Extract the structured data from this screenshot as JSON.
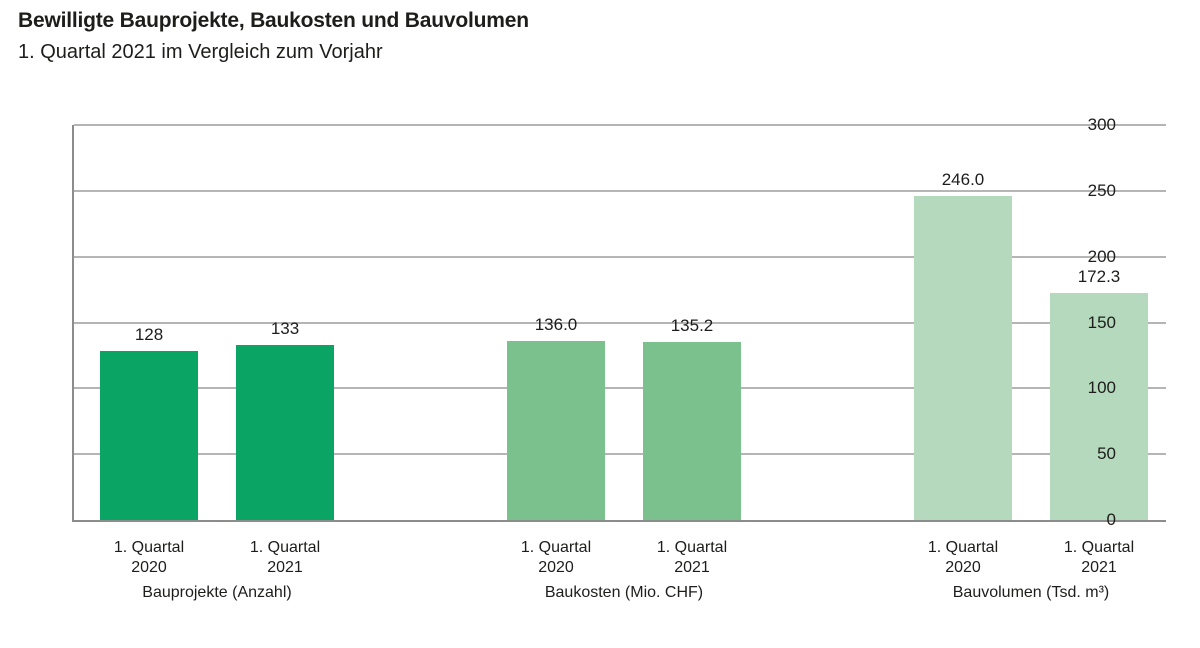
{
  "header": {
    "title": "Bewilligte Bauprojekte, Baukosten und Bauvolumen",
    "subtitle": "1. Quartal 2021 im Vergleich zum Vorjahr"
  },
  "chart_data": {
    "type": "bar",
    "title": "Bewilligte Bauprojekte, Baukosten und Bauvolumen",
    "subtitle": "1. Quartal 2021 im Vergleich zum Vorjahr",
    "ylim": [
      0,
      300
    ],
    "yticks": [
      0,
      50,
      100,
      150,
      200,
      250,
      300
    ],
    "grid": true,
    "legend": "none",
    "colors": {
      "bauprojekte": "#0aa464",
      "baukosten": "#7ac18d",
      "bauvolumen": "#b4d9bc",
      "gridline": "#b5b5b5",
      "axis": "#8c8c8c",
      "text": "#1d1d1b"
    },
    "groups": [
      {
        "label": "Bauprojekte (Anzahl)",
        "color": "#0aa464",
        "bars": [
          {
            "category_lines": [
              "1. Quartal",
              "2020"
            ],
            "value": 128,
            "value_label": "128"
          },
          {
            "category_lines": [
              "1. Quartal",
              "2021"
            ],
            "value": 133,
            "value_label": "133"
          }
        ]
      },
      {
        "label": "Baukosten (Mio. CHF)",
        "color": "#7ac18d",
        "bars": [
          {
            "category_lines": [
              "1. Quartal",
              "2020"
            ],
            "value": 136.0,
            "value_label": "136.0"
          },
          {
            "category_lines": [
              "1. Quartal",
              "2021"
            ],
            "value": 135.2,
            "value_label": "135.2"
          }
        ]
      },
      {
        "label": "Bauvolumen (Tsd. m³)",
        "color": "#b4d9bc",
        "bars": [
          {
            "category_lines": [
              "1. Quartal",
              "2020"
            ],
            "value": 246.0,
            "value_label": "246.0"
          },
          {
            "category_lines": [
              "1. Quartal",
              "2021"
            ],
            "value": 172.3,
            "value_label": "172.3"
          }
        ]
      }
    ]
  }
}
